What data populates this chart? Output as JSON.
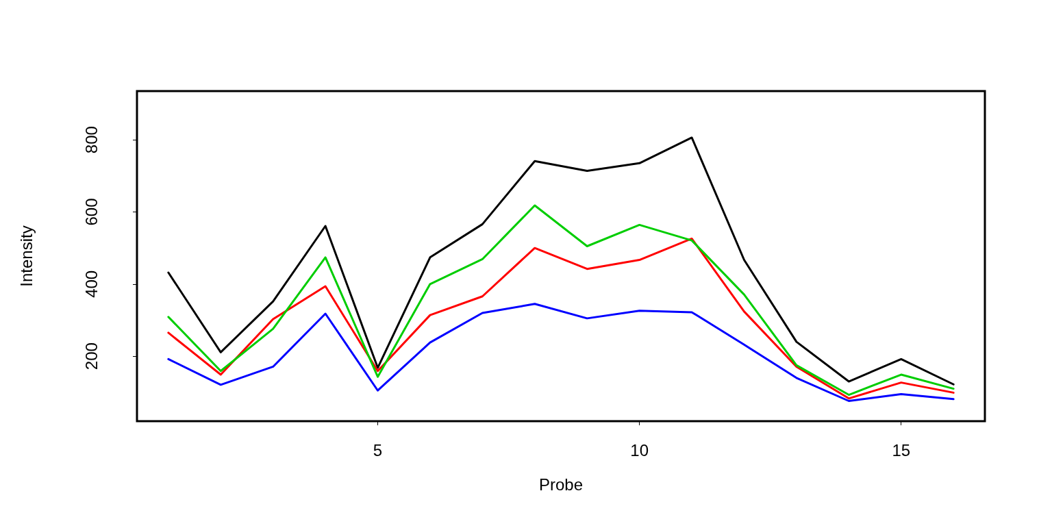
{
  "chart_data": {
    "type": "line",
    "xlabel": "Probe",
    "ylabel": "Intensity",
    "x": [
      1,
      2,
      3,
      4,
      5,
      6,
      7,
      8,
      9,
      10,
      11,
      12,
      13,
      14,
      15,
      16
    ],
    "xlim": [
      0.4,
      16.6
    ],
    "xticks": [
      5,
      10,
      15
    ],
    "ylim": [
      20,
      935
    ],
    "yticks": [
      200,
      400,
      600,
      800
    ],
    "grid": false,
    "marker": "none",
    "line_style": "solid",
    "series": [
      {
        "color": "#000000",
        "values": [
          432,
          211,
          352,
          561,
          168,
          474,
          566,
          741,
          714,
          735,
          806,
          467,
          240,
          130,
          192,
          122
        ]
      },
      {
        "color": "#ff0000",
        "values": [
          265,
          149,
          303,
          394,
          159,
          314,
          366,
          500,
          442,
          467,
          526,
          324,
          171,
          83,
          127,
          99
        ]
      },
      {
        "color": "#00cd00",
        "values": [
          309,
          159,
          276,
          474,
          143,
          400,
          469,
          618,
          505,
          564,
          521,
          371,
          175,
          93,
          149,
          110
        ]
      },
      {
        "color": "#0000ff",
        "values": [
          192,
          121,
          171,
          318,
          105,
          238,
          320,
          345,
          305,
          326,
          322,
          232,
          140,
          76,
          95,
          81
        ]
      }
    ]
  }
}
